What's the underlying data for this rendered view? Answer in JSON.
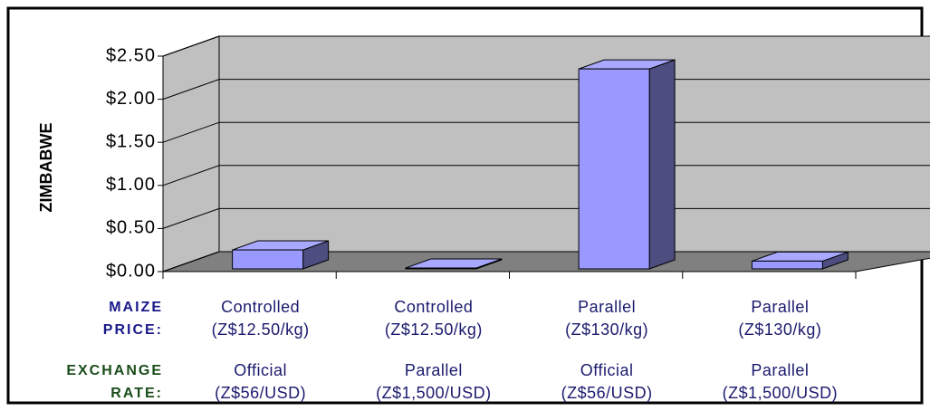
{
  "chart_data": {
    "type": "bar3d",
    "y_label": "ZIMBABWE",
    "values": [
      0.22,
      0.01,
      2.32,
      0.09
    ],
    "color": "#9999ff",
    "ylim": [
      0,
      2.5
    ],
    "yticks": [
      {
        "value": 0,
        "label": "$0.00"
      },
      {
        "value": 0.5,
        "label": "$0.50"
      },
      {
        "value": 1,
        "label": "$1.00"
      },
      {
        "value": 1.5,
        "label": "$1.50"
      },
      {
        "value": 2,
        "label": "$2.00"
      },
      {
        "value": 2.5,
        "label": "$2.50"
      }
    ],
    "grid": true,
    "category_rows": [
      {
        "label": [
          "MAIZE",
          "PRICE:"
        ],
        "color": "#1a1a8c",
        "values": [
          [
            "Controlled",
            "(Z$12.50/kg)"
          ],
          [
            "Controlled",
            "(Z$12.50/kg)"
          ],
          [
            "Parallel",
            "(Z$130/kg)"
          ],
          [
            "Parallel",
            "(Z$130/kg)"
          ]
        ]
      },
      {
        "label": [
          "EXCHANGE",
          "RATE:"
        ],
        "color": "#1a4d1a",
        "values": [
          [
            "Official",
            "(Z$56/USD)"
          ],
          [
            "Parallel",
            "(Z$1,500/USD)"
          ],
          [
            "Official",
            "(Z$56/USD)"
          ],
          [
            "Parallel",
            "(Z$1,500/USD)"
          ]
        ]
      }
    ]
  }
}
